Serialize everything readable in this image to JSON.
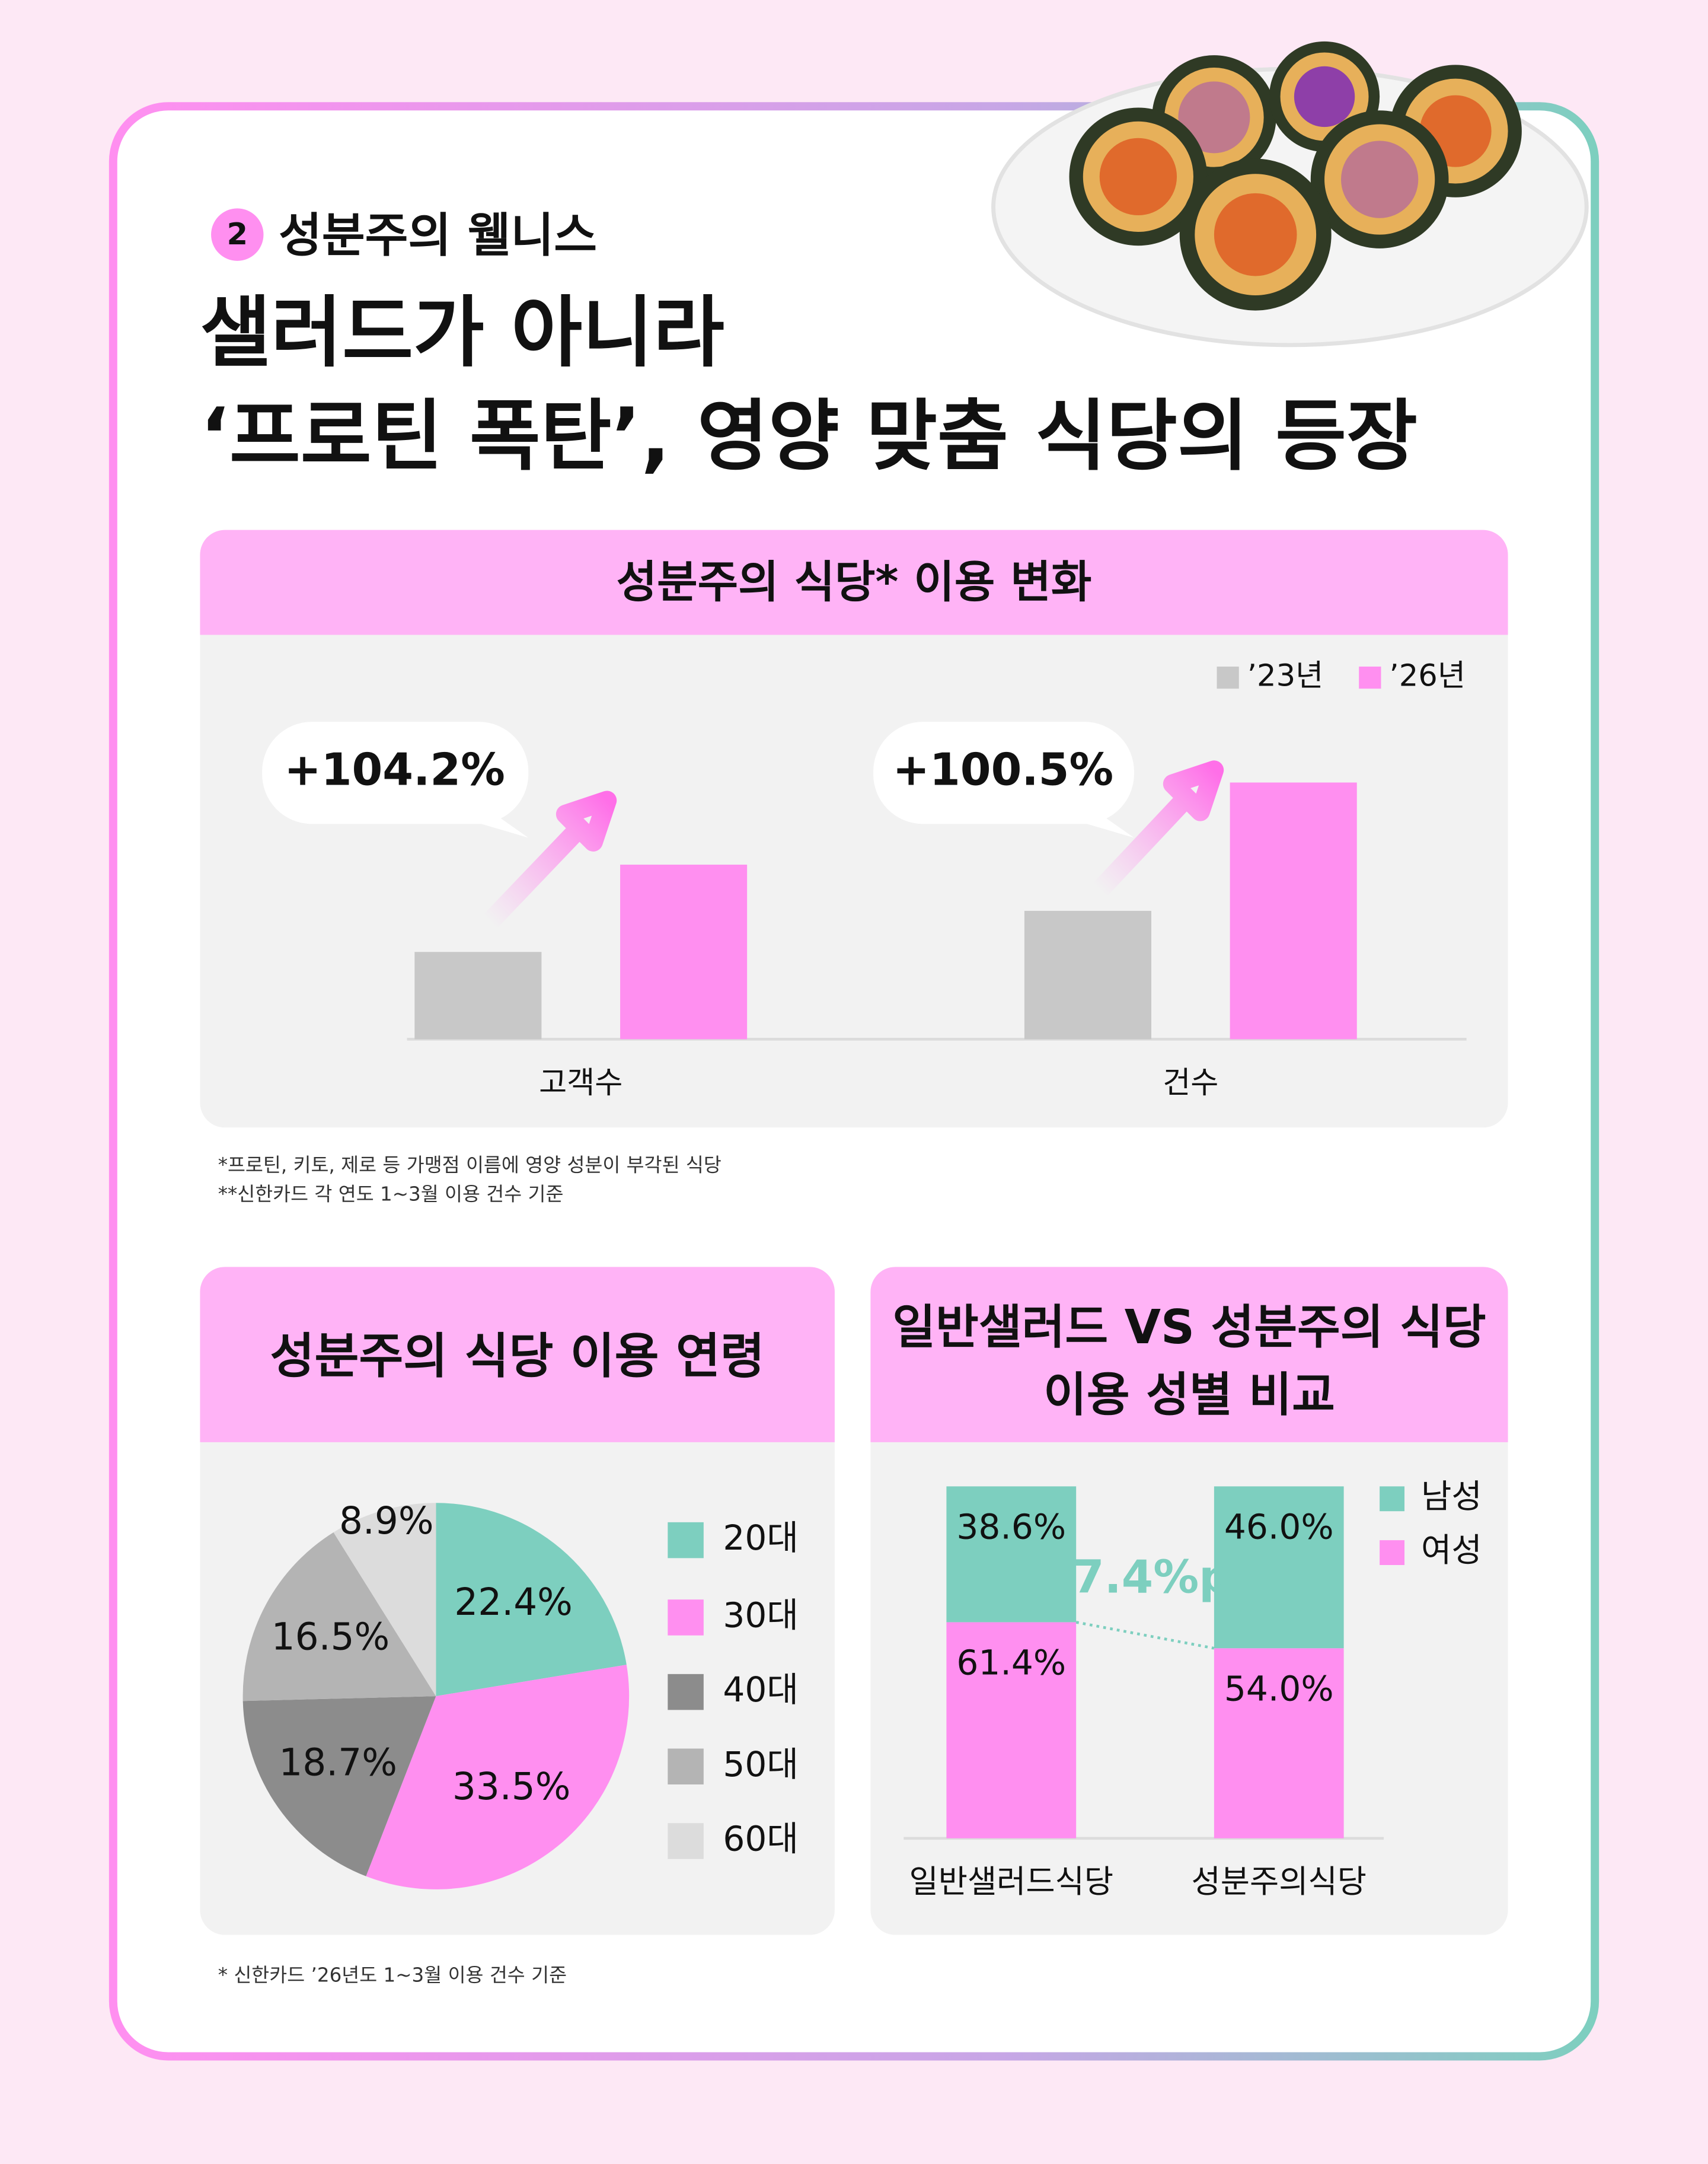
{
  "header": {
    "badge": "2",
    "section": "성분주의 웰니스",
    "title": [
      "샐러드가 아니라",
      "‘프로틴 폭탄’, 영양 맞춤 식당의 등장"
    ]
  },
  "chart_data": [
    {
      "type": "bar",
      "title": "성분주의 식당* 이용 변화",
      "categories": [
        "고객수",
        "건수"
      ],
      "series": [
        {
          "name": "’23년",
          "color": "#c8c8c8",
          "values": [
            34,
            50
          ]
        },
        {
          "name": "’26년",
          "color": "#ff8ff0",
          "values": [
            68,
            100
          ]
        }
      ],
      "ylim": [
        0,
        100
      ],
      "annotations": [
        "+104.2%",
        "+100.5%"
      ],
      "notes": [
        "*프로틴, 키토, 제로 등 가맹점 이름에 영양 성분이 부각된 식당",
        "**신한카드  각 연도 1~3월 이용 건수 기준"
      ]
    },
    {
      "type": "pie",
      "title": "성분주의 식당 이용 연령",
      "categories": [
        "20대",
        "30대",
        "40대",
        "50대",
        "60대"
      ],
      "values": [
        22.4,
        33.5,
        18.7,
        16.5,
        8.9
      ],
      "value_labels": [
        "22.4%",
        "33.5%",
        "18.7%",
        "16.5%",
        "8.9%"
      ],
      "colors": [
        "#7dcfbf",
        "#ff8ff0",
        "#8c8c8c",
        "#b4b4b4",
        "#dcdcdc"
      ],
      "notes": [
        "* 신한카드  ’26년도 1~3월 이용 건수 기준"
      ]
    },
    {
      "type": "stacked_bar",
      "title": [
        "일반샐러드 VS 성분주의 식당",
        "이용 성별 비교"
      ],
      "categories": [
        "일반샐러드식당",
        "성분주의식당"
      ],
      "series": [
        {
          "name": "남성",
          "color": "#7dcfbf",
          "values": [
            38.6,
            46.0
          ],
          "value_labels": [
            "38.6%",
            "46.0%"
          ]
        },
        {
          "name": "여성",
          "color": "#ff8ff0",
          "values": [
            61.4,
            54.0
          ],
          "value_labels": [
            "61.4%",
            "54.0%"
          ]
        }
      ],
      "ylim": [
        0,
        100
      ],
      "annotation": "7.4%p"
    }
  ]
}
